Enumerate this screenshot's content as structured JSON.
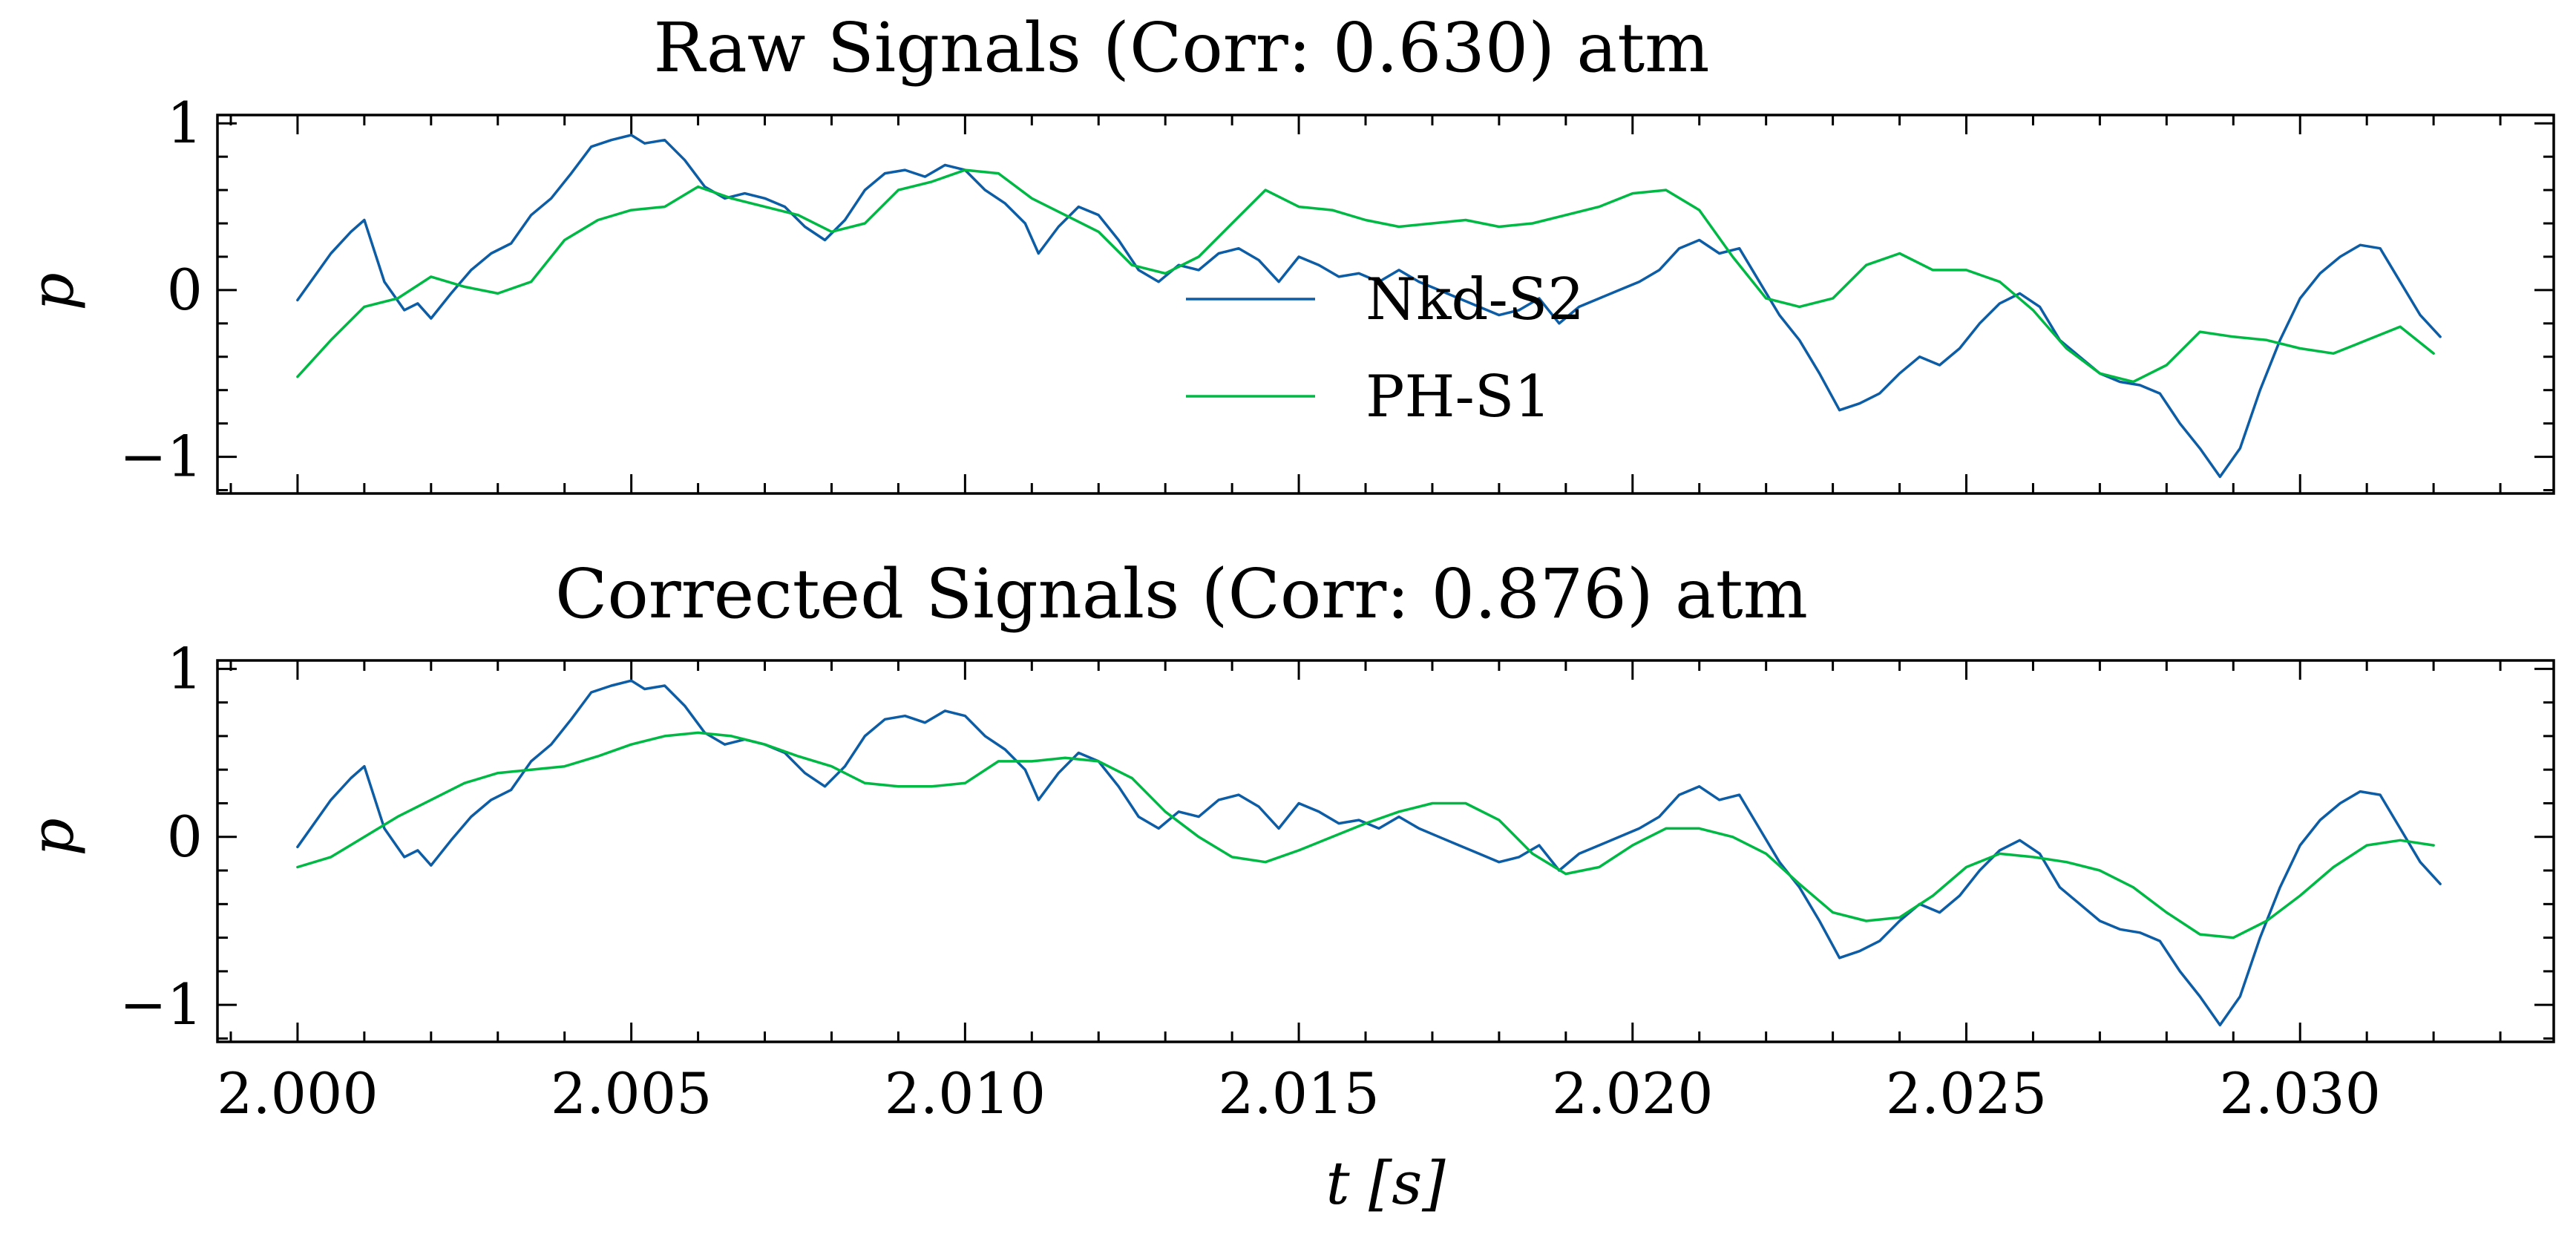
{
  "chart_data": [
    {
      "type": "line",
      "title": "Raw Signals (Corr: 0.630) atm",
      "ylabel": "p",
      "xlabel": "",
      "xlim": [
        1.9988,
        2.0338
      ],
      "ylim": [
        -1.22,
        1.05
      ],
      "xticks": [
        "2.000",
        "2.005",
        "2.010",
        "2.015",
        "2.020",
        "2.025",
        "2.030"
      ],
      "yticks": [
        "1",
        "0",
        "−1"
      ],
      "legend_position": "center",
      "series": [
        {
          "name": "Nkd-S2",
          "color": "#0C5DA5",
          "x": [
            2.0,
            2.0005,
            2.0008,
            2.001,
            2.0013,
            2.0016,
            2.0018,
            2.002,
            2.0023,
            2.0026,
            2.0029,
            2.0032,
            2.0035,
            2.0038,
            2.0041,
            2.0044,
            2.0047,
            2.005,
            2.0052,
            2.0055,
            2.0058,
            2.0061,
            2.0064,
            2.0067,
            2.007,
            2.0073,
            2.0076,
            2.0079,
            2.0082,
            2.0085,
            2.0088,
            2.0091,
            2.0094,
            2.0097,
            2.01,
            2.0103,
            2.0106,
            2.0109,
            2.0111,
            2.0114,
            2.0117,
            2.012,
            2.0123,
            2.0126,
            2.0129,
            2.0132,
            2.0135,
            2.0138,
            2.0141,
            2.0144,
            2.0147,
            2.015,
            2.0153,
            2.0156,
            2.0159,
            2.0162,
            2.0165,
            2.0168,
            2.0171,
            2.0174,
            2.0177,
            2.018,
            2.0183,
            2.0186,
            2.0189,
            2.0192,
            2.0195,
            2.0198,
            2.0201,
            2.0204,
            2.0207,
            2.021,
            2.0213,
            2.0216,
            2.0219,
            2.0222,
            2.0225,
            2.0228,
            2.0231,
            2.0234,
            2.0237,
            2.024,
            2.0243,
            2.0246,
            2.0249,
            2.0252,
            2.0255,
            2.0258,
            2.0261,
            2.0264,
            2.0267,
            2.027,
            2.0273,
            2.0276,
            2.0279,
            2.0282,
            2.0285,
            2.0288,
            2.0291,
            2.0294,
            2.0297,
            2.03,
            2.0303,
            2.0306,
            2.0309,
            2.0312,
            2.0315,
            2.0318,
            2.0321
          ],
          "y": [
            -0.06,
            0.22,
            0.35,
            0.42,
            0.05,
            -0.12,
            -0.08,
            -0.17,
            -0.02,
            0.12,
            0.22,
            0.28,
            0.45,
            0.55,
            0.7,
            0.86,
            0.9,
            0.93,
            0.88,
            0.9,
            0.78,
            0.62,
            0.55,
            0.58,
            0.55,
            0.5,
            0.38,
            0.3,
            0.42,
            0.6,
            0.7,
            0.72,
            0.68,
            0.75,
            0.72,
            0.6,
            0.52,
            0.4,
            0.22,
            0.38,
            0.5,
            0.45,
            0.3,
            0.12,
            0.05,
            0.15,
            0.12,
            0.22,
            0.25,
            0.18,
            0.05,
            0.2,
            0.15,
            0.08,
            0.1,
            0.05,
            0.12,
            0.05,
            0.0,
            -0.05,
            -0.1,
            -0.15,
            -0.12,
            -0.05,
            -0.2,
            -0.1,
            -0.05,
            0.0,
            0.05,
            0.12,
            0.25,
            0.3,
            0.22,
            0.25,
            0.05,
            -0.15,
            -0.3,
            -0.5,
            -0.72,
            -0.68,
            -0.62,
            -0.5,
            -0.4,
            -0.45,
            -0.35,
            -0.2,
            -0.08,
            -0.02,
            -0.1,
            -0.3,
            -0.4,
            -0.5,
            -0.55,
            -0.57,
            -0.62,
            -0.8,
            -0.95,
            -1.12,
            -0.95,
            -0.6,
            -0.3,
            -0.05,
            0.1,
            0.2,
            0.27,
            0.25,
            0.05,
            -0.15,
            -0.28
          ]
        },
        {
          "name": "PH-S1",
          "color": "#00B945",
          "x": [
            2.0,
            2.0005,
            2.001,
            2.0015,
            2.002,
            2.0025,
            2.003,
            2.0035,
            2.004,
            2.0045,
            2.005,
            2.0055,
            2.006,
            2.0065,
            2.007,
            2.0075,
            2.008,
            2.0085,
            2.009,
            2.0095,
            2.01,
            2.0105,
            2.011,
            2.0115,
            2.012,
            2.0125,
            2.013,
            2.0135,
            2.014,
            2.0145,
            2.015,
            2.0155,
            2.016,
            2.0165,
            2.017,
            2.0175,
            2.018,
            2.0185,
            2.019,
            2.0195,
            2.02,
            2.0205,
            2.021,
            2.0215,
            2.022,
            2.0225,
            2.023,
            2.0235,
            2.024,
            2.0245,
            2.025,
            2.0255,
            2.026,
            2.0265,
            2.027,
            2.0275,
            2.028,
            2.0285,
            2.029,
            2.0295,
            2.03,
            2.0305,
            2.031,
            2.0315,
            2.032
          ],
          "y": [
            -0.52,
            -0.3,
            -0.1,
            -0.05,
            0.08,
            0.02,
            -0.02,
            0.05,
            0.3,
            0.42,
            0.48,
            0.5,
            0.62,
            0.55,
            0.5,
            0.45,
            0.35,
            0.4,
            0.6,
            0.65,
            0.72,
            0.7,
            0.55,
            0.45,
            0.35,
            0.15,
            0.1,
            0.2,
            0.4,
            0.6,
            0.5,
            0.48,
            0.42,
            0.38,
            0.4,
            0.42,
            0.38,
            0.4,
            0.45,
            0.5,
            0.58,
            0.6,
            0.48,
            0.2,
            -0.05,
            -0.1,
            -0.05,
            0.15,
            0.22,
            0.12,
            0.12,
            0.05,
            -0.12,
            -0.35,
            -0.5,
            -0.55,
            -0.45,
            -0.25,
            -0.28,
            -0.3,
            -0.35,
            -0.38,
            -0.3,
            -0.22,
            -0.38
          ]
        }
      ]
    },
    {
      "type": "line",
      "title": "Corrected Signals (Corr: 0.876) atm",
      "ylabel": "p",
      "xlabel": "t [s]",
      "xlim": [
        1.9988,
        2.0338
      ],
      "ylim": [
        -1.22,
        1.05
      ],
      "xticks": [
        "2.000",
        "2.005",
        "2.010",
        "2.015",
        "2.020",
        "2.025",
        "2.030"
      ],
      "yticks": [
        "1",
        "0",
        "−1"
      ],
      "series": [
        {
          "name": "Nkd-S2",
          "color": "#0C5DA5",
          "x": [
            2.0,
            2.0005,
            2.0008,
            2.001,
            2.0013,
            2.0016,
            2.0018,
            2.002,
            2.0023,
            2.0026,
            2.0029,
            2.0032,
            2.0035,
            2.0038,
            2.0041,
            2.0044,
            2.0047,
            2.005,
            2.0052,
            2.0055,
            2.0058,
            2.0061,
            2.0064,
            2.0067,
            2.007,
            2.0073,
            2.0076,
            2.0079,
            2.0082,
            2.0085,
            2.0088,
            2.0091,
            2.0094,
            2.0097,
            2.01,
            2.0103,
            2.0106,
            2.0109,
            2.0111,
            2.0114,
            2.0117,
            2.012,
            2.0123,
            2.0126,
            2.0129,
            2.0132,
            2.0135,
            2.0138,
            2.0141,
            2.0144,
            2.0147,
            2.015,
            2.0153,
            2.0156,
            2.0159,
            2.0162,
            2.0165,
            2.0168,
            2.0171,
            2.0174,
            2.0177,
            2.018,
            2.0183,
            2.0186,
            2.0189,
            2.0192,
            2.0195,
            2.0198,
            2.0201,
            2.0204,
            2.0207,
            2.021,
            2.0213,
            2.0216,
            2.0219,
            2.0222,
            2.0225,
            2.0228,
            2.0231,
            2.0234,
            2.0237,
            2.024,
            2.0243,
            2.0246,
            2.0249,
            2.0252,
            2.0255,
            2.0258,
            2.0261,
            2.0264,
            2.0267,
            2.027,
            2.0273,
            2.0276,
            2.0279,
            2.0282,
            2.0285,
            2.0288,
            2.0291,
            2.0294,
            2.0297,
            2.03,
            2.0303,
            2.0306,
            2.0309,
            2.0312,
            2.0315,
            2.0318,
            2.0321
          ],
          "y": [
            -0.06,
            0.22,
            0.35,
            0.42,
            0.05,
            -0.12,
            -0.08,
            -0.17,
            -0.02,
            0.12,
            0.22,
            0.28,
            0.45,
            0.55,
            0.7,
            0.86,
            0.9,
            0.93,
            0.88,
            0.9,
            0.78,
            0.62,
            0.55,
            0.58,
            0.55,
            0.5,
            0.38,
            0.3,
            0.42,
            0.6,
            0.7,
            0.72,
            0.68,
            0.75,
            0.72,
            0.6,
            0.52,
            0.4,
            0.22,
            0.38,
            0.5,
            0.45,
            0.3,
            0.12,
            0.05,
            0.15,
            0.12,
            0.22,
            0.25,
            0.18,
            0.05,
            0.2,
            0.15,
            0.08,
            0.1,
            0.05,
            0.12,
            0.05,
            0.0,
            -0.05,
            -0.1,
            -0.15,
            -0.12,
            -0.05,
            -0.2,
            -0.1,
            -0.05,
            0.0,
            0.05,
            0.12,
            0.25,
            0.3,
            0.22,
            0.25,
            0.05,
            -0.15,
            -0.3,
            -0.5,
            -0.72,
            -0.68,
            -0.62,
            -0.5,
            -0.4,
            -0.45,
            -0.35,
            -0.2,
            -0.08,
            -0.02,
            -0.1,
            -0.3,
            -0.4,
            -0.5,
            -0.55,
            -0.57,
            -0.62,
            -0.8,
            -0.95,
            -1.12,
            -0.95,
            -0.6,
            -0.3,
            -0.05,
            0.1,
            0.2,
            0.27,
            0.25,
            0.05,
            -0.15,
            -0.28
          ]
        },
        {
          "name": "PH-S1",
          "color": "#00B945",
          "x": [
            2.0,
            2.0005,
            2.001,
            2.0015,
            2.002,
            2.0025,
            2.003,
            2.0035,
            2.004,
            2.0045,
            2.005,
            2.0055,
            2.006,
            2.0065,
            2.007,
            2.0075,
            2.008,
            2.0085,
            2.009,
            2.0095,
            2.01,
            2.0105,
            2.011,
            2.0115,
            2.012,
            2.0125,
            2.013,
            2.0135,
            2.014,
            2.0145,
            2.015,
            2.0155,
            2.016,
            2.0165,
            2.017,
            2.0175,
            2.018,
            2.0185,
            2.019,
            2.0195,
            2.02,
            2.0205,
            2.021,
            2.0215,
            2.022,
            2.0225,
            2.023,
            2.0235,
            2.024,
            2.0245,
            2.025,
            2.0255,
            2.026,
            2.0265,
            2.027,
            2.0275,
            2.028,
            2.0285,
            2.029,
            2.0295,
            2.03,
            2.0305,
            2.031,
            2.0315,
            2.032
          ],
          "y": [
            -0.18,
            -0.12,
            0.0,
            0.12,
            0.22,
            0.32,
            0.38,
            0.4,
            0.42,
            0.48,
            0.55,
            0.6,
            0.62,
            0.6,
            0.55,
            0.48,
            0.42,
            0.32,
            0.3,
            0.3,
            0.32,
            0.45,
            0.45,
            0.47,
            0.45,
            0.35,
            0.15,
            0.0,
            -0.12,
            -0.15,
            -0.08,
            0.0,
            0.08,
            0.15,
            0.2,
            0.2,
            0.1,
            -0.1,
            -0.22,
            -0.18,
            -0.05,
            0.05,
            0.05,
            0.0,
            -0.1,
            -0.28,
            -0.45,
            -0.5,
            -0.48,
            -0.35,
            -0.18,
            -0.1,
            -0.12,
            -0.15,
            -0.2,
            -0.3,
            -0.45,
            -0.58,
            -0.6,
            -0.5,
            -0.35,
            -0.18,
            -0.05,
            -0.02,
            -0.05
          ]
        }
      ]
    }
  ]
}
